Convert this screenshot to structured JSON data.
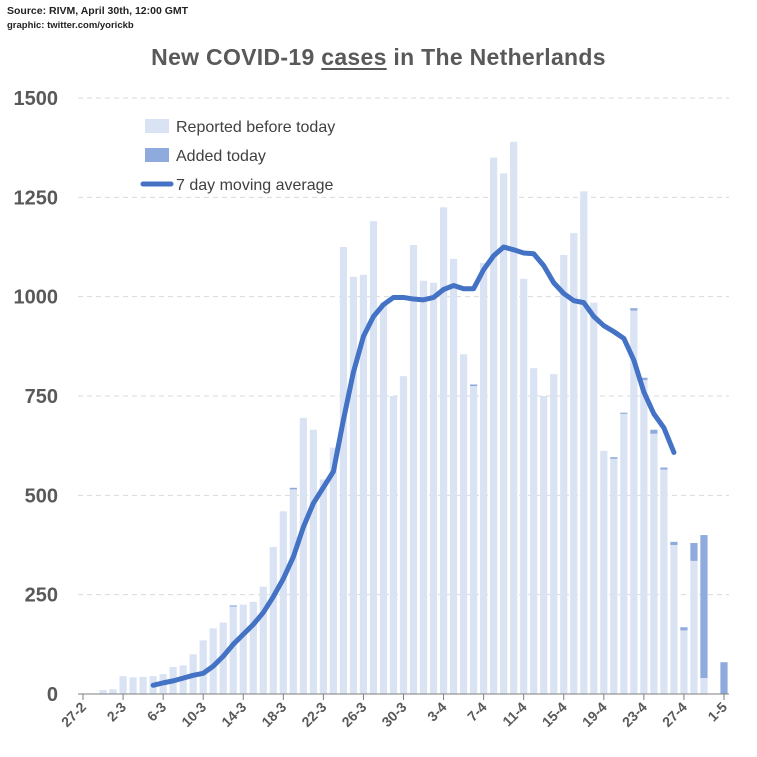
{
  "source_line": "Source: RIVM, April 30th, 12:00 GMT",
  "credit_line": "graphic: twitter.com/yorickb",
  "title_parts": {
    "pre": "New COVID-19 ",
    "emph": "cases",
    "post": " in The Netherlands"
  },
  "colors": {
    "reported": "#dae3f3",
    "added": "#8faadc",
    "average": "#4472c4",
    "grid": "#d9d9d9",
    "axis": "#7f7f7f"
  },
  "chart_data": {
    "type": "bar",
    "title": "New COVID-19 cases in The Netherlands",
    "xlabel": "",
    "ylabel": "",
    "ylim": [
      0,
      1500
    ],
    "yticks": [
      0,
      250,
      500,
      750,
      1000,
      1250,
      1500
    ],
    "grid": true,
    "legend_position": "top-left",
    "legend": [
      "Reported before today",
      "Added today",
      "7 day moving average"
    ],
    "x_tick_labels": [
      "27-2",
      "2-3",
      "6-3",
      "10-3",
      "14-3",
      "18-3",
      "22-3",
      "26-3",
      "30-3",
      "3-4",
      "7-4",
      "11-4",
      "15-4",
      "19-4",
      "23-4",
      "27-4",
      "1-5"
    ],
    "categories": [
      "27-2",
      "28-2",
      "29-2",
      "1-3",
      "2-3",
      "3-3",
      "4-3",
      "5-3",
      "6-3",
      "7-3",
      "8-3",
      "9-3",
      "10-3",
      "11-3",
      "12-3",
      "13-3",
      "14-3",
      "15-3",
      "16-3",
      "17-3",
      "18-3",
      "19-3",
      "20-3",
      "21-3",
      "22-3",
      "23-3",
      "24-3",
      "25-3",
      "26-3",
      "27-3",
      "28-3",
      "29-3",
      "30-3",
      "31-3",
      "1-4",
      "2-4",
      "3-4",
      "4-4",
      "5-4",
      "6-4",
      "7-4",
      "8-4",
      "9-4",
      "10-4",
      "11-4",
      "12-4",
      "13-4",
      "14-4",
      "15-4",
      "16-4",
      "17-4",
      "18-4",
      "19-4",
      "20-4",
      "21-4",
      "22-4",
      "23-4",
      "24-4",
      "25-4",
      "26-4",
      "27-4",
      "28-4",
      "29-4",
      "30-4",
      "1-5"
    ],
    "series": [
      {
        "name": "Reported before today",
        "values": [
          0,
          0,
          10,
          12,
          45,
          42,
          43,
          45,
          50,
          68,
          72,
          100,
          135,
          165,
          180,
          220,
          225,
          232,
          270,
          370,
          460,
          515,
          695,
          665,
          540,
          620,
          1125,
          1050,
          1055,
          1190,
          985,
          750,
          800,
          1130,
          1040,
          1035,
          1225,
          1095,
          855,
          775,
          1085,
          1350,
          1310,
          1390,
          1045,
          820,
          750,
          805,
          1105,
          1160,
          1265,
          985,
          612,
          592,
          705,
          965,
          790,
          655,
          565,
          375,
          160,
          335,
          40,
          0,
          0
        ]
      },
      {
        "name": "Added today",
        "values": [
          0,
          0,
          0,
          0,
          0,
          0,
          0,
          0,
          0,
          0,
          0,
          0,
          0,
          0,
          0,
          3,
          0,
          0,
          0,
          0,
          0,
          4,
          0,
          0,
          0,
          0,
          0,
          0,
          0,
          0,
          0,
          0,
          0,
          0,
          0,
          0,
          0,
          0,
          0,
          4,
          0,
          0,
          0,
          0,
          0,
          0,
          0,
          0,
          0,
          0,
          0,
          0,
          0,
          4,
          3,
          6,
          6,
          10,
          5,
          8,
          8,
          45,
          360,
          0,
          80
        ]
      },
      {
        "name": "7 day moving average",
        "values": [
          null,
          null,
          null,
          null,
          null,
          null,
          null,
          22,
          28,
          33,
          40,
          47,
          52,
          70,
          95,
          125,
          150,
          175,
          205,
          245,
          290,
          345,
          420,
          480,
          520,
          560,
          690,
          810,
          900,
          950,
          980,
          998,
          998,
          994,
          992,
          998,
          1018,
          1028,
          1020,
          1020,
          1068,
          1103,
          1125,
          1118,
          1110,
          1108,
          1078,
          1035,
          1008,
          990,
          985,
          950,
          927,
          912,
          895,
          840,
          760,
          705,
          670,
          608,
          null,
          null,
          null,
          null,
          null
        ]
      }
    ]
  }
}
